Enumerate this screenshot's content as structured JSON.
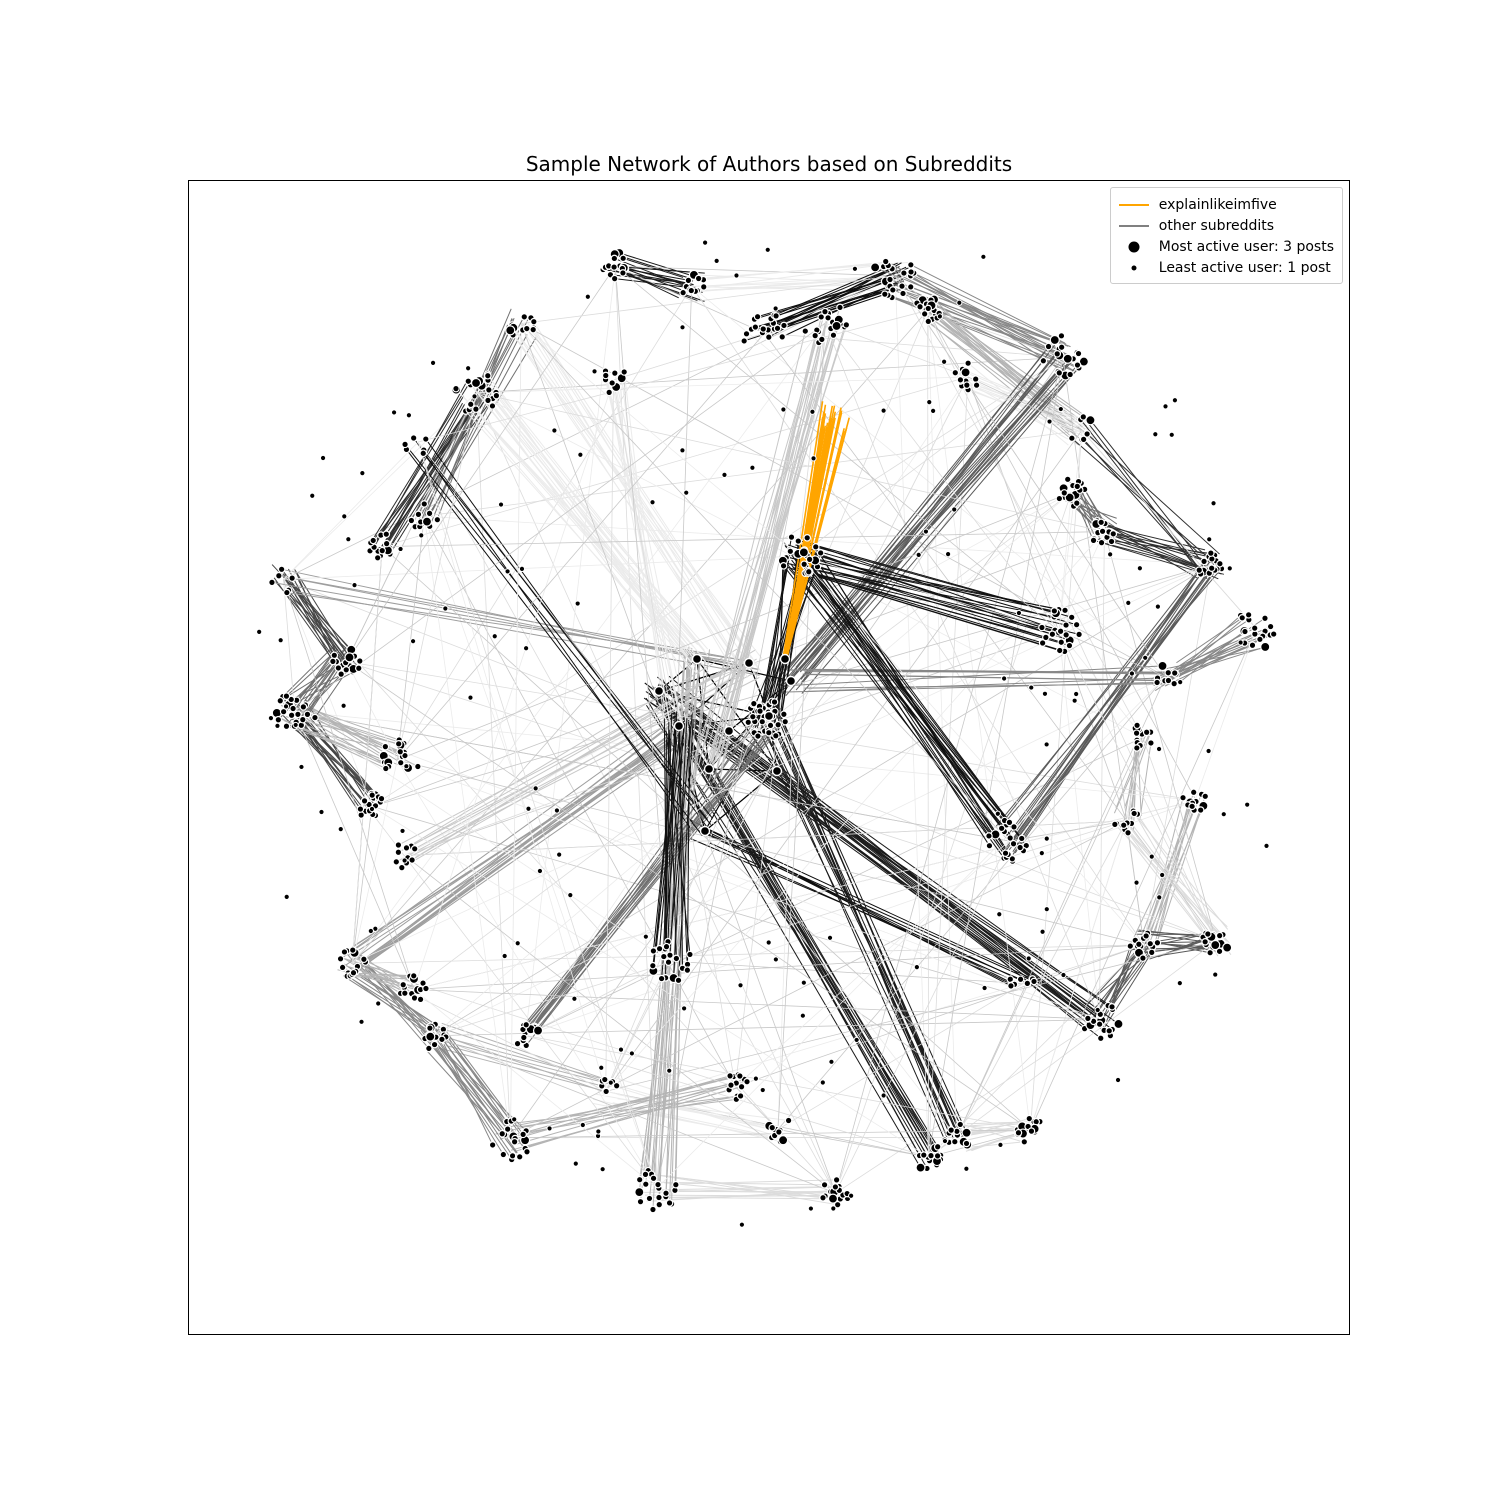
{
  "title": "Sample Network of Authors based on Subreddits",
  "legend": {
    "highlight": {
      "label": "explainlikeimfive",
      "color": "#ffa500"
    },
    "other": {
      "label": "other subreddits",
      "color": "#808080"
    },
    "most_active": {
      "label": "Most active user: 3 posts",
      "posts": 3
    },
    "least_active": {
      "label": "Least active user: 1 post",
      "posts": 1
    }
  },
  "colors": {
    "node_fill": "#000000",
    "node_edge": "#ffffff",
    "highlight_edge": "#ffa500",
    "gray_levels": [
      "#0d0d0d",
      "#1a1a1a",
      "#2e2e2e",
      "#444444",
      "#5a5a5a",
      "#707070",
      "#888888",
      "#9e9e9e",
      "#b4b4b4",
      "#c8c8c8",
      "#dcdcdc",
      "#ebebeb"
    ]
  }
}
